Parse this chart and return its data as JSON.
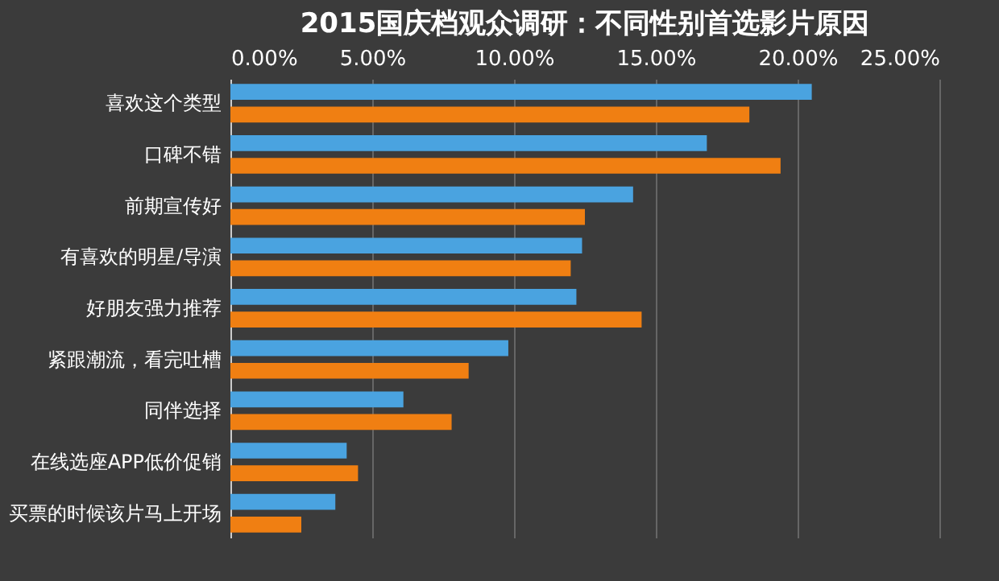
{
  "chart_data": {
    "type": "bar",
    "orientation": "horizontal",
    "title": "2015国庆档观众调研：不同性别首选影片原因",
    "categories": [
      "喜欢这个类型",
      "口碑不错",
      "前期宣传好",
      "有喜欢的明星/导演",
      "好朋友强力推荐",
      "紧跟潮流，看完吐槽",
      "同伴选择",
      "在线选座APP低价促销",
      "买票的时候该片马上开场"
    ],
    "series": [
      {
        "color": "#4aa3e0",
        "values": [
          20.5,
          16.8,
          14.2,
          12.4,
          12.2,
          9.8,
          6.1,
          4.1,
          3.7
        ]
      },
      {
        "color": "#f07f12",
        "values": [
          18.3,
          19.4,
          12.5,
          12.0,
          14.5,
          8.4,
          7.8,
          4.5,
          2.5
        ]
      }
    ],
    "xlim": [
      0,
      25
    ],
    "xticks": [
      {
        "value": 0,
        "label": "0.00%"
      },
      {
        "value": 5,
        "label": "5.00%"
      },
      {
        "value": 10,
        "label": "10.00%"
      },
      {
        "value": 15,
        "label": "15.00%"
      },
      {
        "value": 20,
        "label": "20.00%"
      },
      {
        "value": 25,
        "label": "25.00%"
      }
    ],
    "grid": "x"
  }
}
